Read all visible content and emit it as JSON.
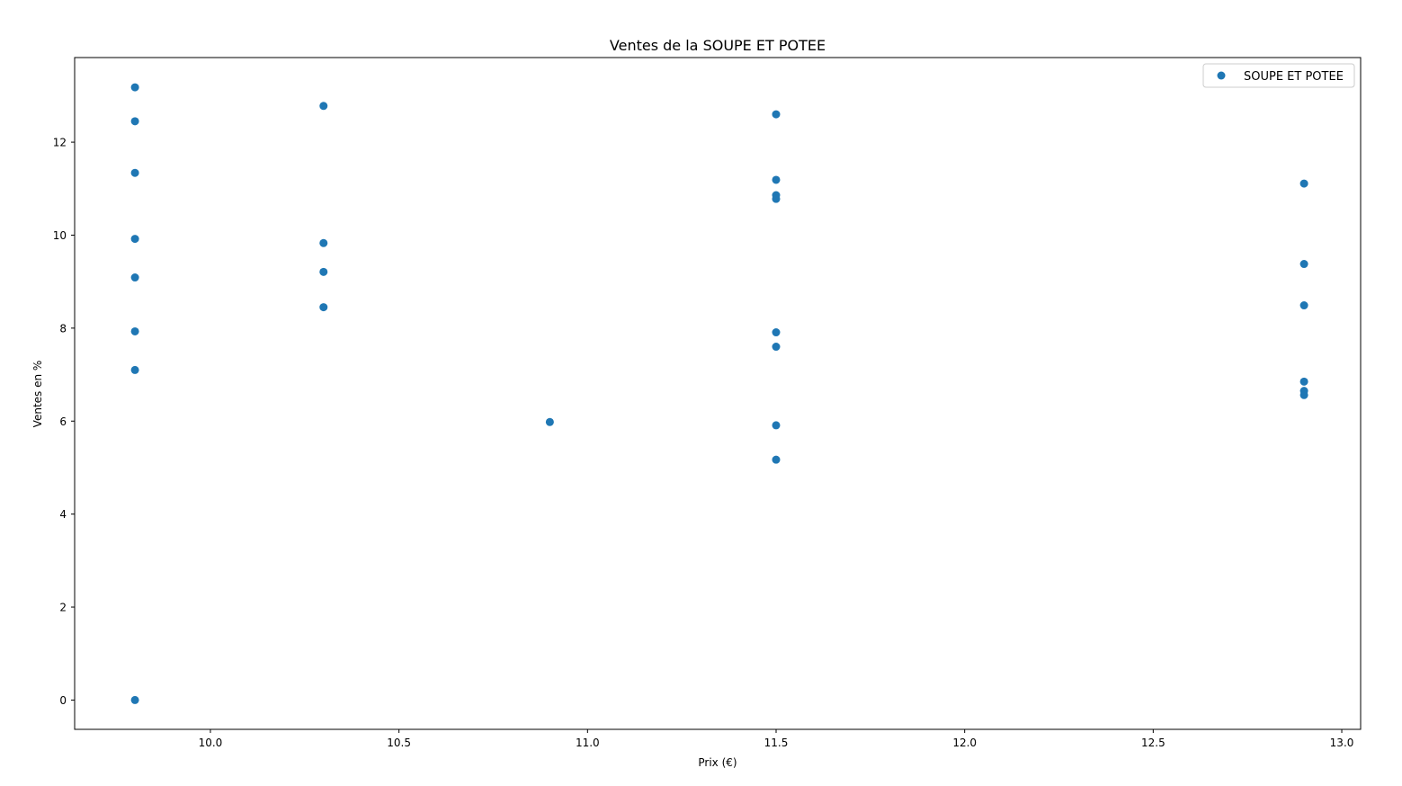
{
  "chart_data": {
    "type": "scatter",
    "title": "Ventes de la SOUPE ET POTEE",
    "xlabel": "Prix (€)",
    "ylabel": "Ventes en %",
    "xlim": [
      9.64,
      13.05
    ],
    "ylim": [
      -0.63,
      13.82
    ],
    "xticks": [
      "10.0",
      "10.5",
      "11.0",
      "11.5",
      "12.0",
      "12.5",
      "13.0"
    ],
    "yticks": [
      "0",
      "2",
      "4",
      "6",
      "8",
      "10",
      "12"
    ],
    "grid": false,
    "legend_position": "top-right",
    "series": [
      {
        "name": "SOUPE ET POTEE",
        "color": "#1f77b4",
        "points": [
          {
            "x": 9.8,
            "y": 13.18
          },
          {
            "x": 9.8,
            "y": 12.45
          },
          {
            "x": 9.8,
            "y": 11.34
          },
          {
            "x": 9.8,
            "y": 9.92
          },
          {
            "x": 9.8,
            "y": 9.09
          },
          {
            "x": 9.8,
            "y": 7.93
          },
          {
            "x": 9.8,
            "y": 7.1
          },
          {
            "x": 9.8,
            "y": 0.0
          },
          {
            "x": 10.3,
            "y": 12.78
          },
          {
            "x": 10.3,
            "y": 9.83
          },
          {
            "x": 10.3,
            "y": 9.21
          },
          {
            "x": 10.3,
            "y": 8.45
          },
          {
            "x": 10.9,
            "y": 5.98
          },
          {
            "x": 11.5,
            "y": 12.6
          },
          {
            "x": 11.5,
            "y": 11.19
          },
          {
            "x": 11.5,
            "y": 10.86
          },
          {
            "x": 11.5,
            "y": 10.78
          },
          {
            "x": 11.5,
            "y": 7.91
          },
          {
            "x": 11.5,
            "y": 7.6
          },
          {
            "x": 11.5,
            "y": 5.91
          },
          {
            "x": 11.5,
            "y": 5.17
          },
          {
            "x": 12.9,
            "y": 11.11
          },
          {
            "x": 12.9,
            "y": 9.38
          },
          {
            "x": 12.9,
            "y": 8.49
          },
          {
            "x": 12.9,
            "y": 6.85
          },
          {
            "x": 12.9,
            "y": 6.65
          },
          {
            "x": 12.9,
            "y": 6.56
          }
        ]
      }
    ]
  }
}
